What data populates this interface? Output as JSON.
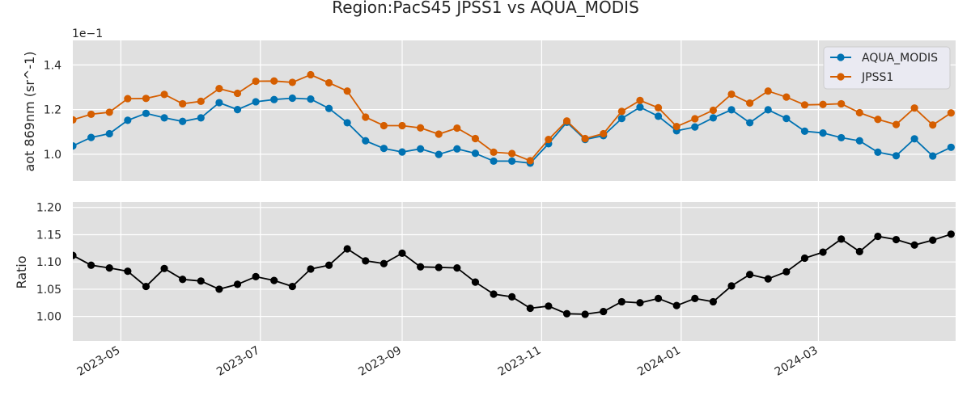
{
  "colors": {
    "background": "#ffffff",
    "panel": "#e0e0e0",
    "grid": "#ffffff",
    "text": "#262626",
    "aqua": "#0072b2",
    "jpss1": "#d55e00",
    "ratio": "#000000",
    "legend_bg": "#eaeaf2",
    "legend_border": "#cccccc"
  },
  "chart_data": [
    {
      "type": "line",
      "title": "Region:PacS45 JPSS1 vs AQUA_MODIS",
      "ylabel": "aot 869nm (sr^-1)",
      "offset_text": "1e−1",
      "ylim": [
        0.088,
        0.151
      ],
      "yticks": [
        0.1,
        0.12,
        0.14
      ],
      "ytick_labels": [
        "1.0",
        "1.2",
        "1.4"
      ],
      "xlim": [
        "2023-04-10",
        "2024-04-30"
      ],
      "grid": true,
      "legend_position": "top-right",
      "x": [
        "2023-04-10",
        "2023-04-18",
        "2023-04-26",
        "2023-05-04",
        "2023-05-12",
        "2023-05-20",
        "2023-05-28",
        "2023-06-05",
        "2023-06-13",
        "2023-06-21",
        "2023-06-29",
        "2023-07-07",
        "2023-07-15",
        "2023-07-23",
        "2023-07-31",
        "2023-08-08",
        "2023-08-16",
        "2023-08-24",
        "2023-09-01",
        "2023-09-09",
        "2023-09-17",
        "2023-09-25",
        "2023-10-03",
        "2023-10-11",
        "2023-10-19",
        "2023-10-27",
        "2023-11-04",
        "2023-11-12",
        "2023-11-20",
        "2023-11-28",
        "2023-12-06",
        "2023-12-14",
        "2023-12-22",
        "2023-12-30",
        "2024-01-07",
        "2024-01-15",
        "2024-01-23",
        "2024-01-31",
        "2024-02-08",
        "2024-02-16",
        "2024-02-24",
        "2024-03-03",
        "2024-03-11",
        "2024-03-19",
        "2024-03-27",
        "2024-04-04",
        "2024-04-12",
        "2024-04-20",
        "2024-04-28"
      ],
      "series": [
        {
          "name": "AQUA_MODIS",
          "color": "#0072b2",
          "values": [
            0.1037,
            0.1075,
            0.1092,
            0.1152,
            0.1183,
            0.1163,
            0.1147,
            0.1163,
            0.1231,
            0.12,
            0.1235,
            0.1245,
            0.1251,
            0.1247,
            0.1205,
            0.1141,
            0.106,
            0.1026,
            0.101,
            0.1024,
            0.0999,
            0.1024,
            0.1004,
            0.0969,
            0.0969,
            0.096,
            0.1047,
            0.1143,
            0.1066,
            0.1083,
            0.116,
            0.1211,
            0.117,
            0.1105,
            0.1122,
            0.1163,
            0.1199,
            0.1141,
            0.1199,
            0.116,
            0.1103,
            0.1095,
            0.1074,
            0.106,
            0.1009,
            0.0993,
            0.1069,
            0.0992,
            0.1031
          ]
        },
        {
          "name": "JPSS1",
          "color": "#d55e00",
          "values": [
            0.1154,
            0.1179,
            0.1188,
            0.1249,
            0.125,
            0.1268,
            0.1226,
            0.1237,
            0.1294,
            0.1273,
            0.1327,
            0.1328,
            0.1322,
            0.1356,
            0.132,
            0.1283,
            0.1166,
            0.1128,
            0.1128,
            0.1118,
            0.109,
            0.1117,
            0.107,
            0.1009,
            0.1003,
            0.0971,
            0.1066,
            0.1149,
            0.107,
            0.1092,
            0.1192,
            0.1241,
            0.1208,
            0.1124,
            0.1159,
            0.1197,
            0.1269,
            0.1229,
            0.1283,
            0.1256,
            0.1221,
            0.1223,
            0.1226,
            0.1186,
            0.1156,
            0.1133,
            0.1207,
            0.1131,
            0.1185
          ]
        }
      ]
    },
    {
      "type": "line",
      "ylabel": "Ratio",
      "ylim": [
        0.955,
        1.21
      ],
      "yticks": [
        1.0,
        1.05,
        1.1,
        1.15,
        1.2
      ],
      "ytick_labels": [
        "1.00",
        "1.05",
        "1.10",
        "1.15",
        "1.20"
      ],
      "xlim": [
        "2023-04-10",
        "2024-04-30"
      ],
      "xticks": [
        "2023-05-01",
        "2023-07-01",
        "2023-09-01",
        "2023-11-01",
        "2024-01-01",
        "2024-03-01"
      ],
      "xtick_labels": [
        "2023-05",
        "2023-07",
        "2023-09",
        "2023-11",
        "2024-01",
        "2024-03"
      ],
      "grid": true,
      "series": [
        {
          "color": "#000000",
          "values": [
            1.112,
            1.094,
            1.089,
            1.083,
            1.055,
            1.088,
            1.068,
            1.065,
            1.05,
            1.059,
            1.073,
            1.066,
            1.055,
            1.087,
            1.094,
            1.124,
            1.102,
            1.097,
            1.116,
            1.091,
            1.09,
            1.089,
            1.063,
            1.041,
            1.036,
            1.015,
            1.019,
            1.005,
            1.004,
            1.009,
            1.027,
            1.025,
            1.033,
            1.02,
            1.033,
            1.027,
            1.056,
            1.077,
            1.069,
            1.082,
            1.107,
            1.118,
            1.142,
            1.119,
            1.147,
            1.141,
            1.131,
            1.14,
            1.151
          ]
        }
      ]
    }
  ]
}
